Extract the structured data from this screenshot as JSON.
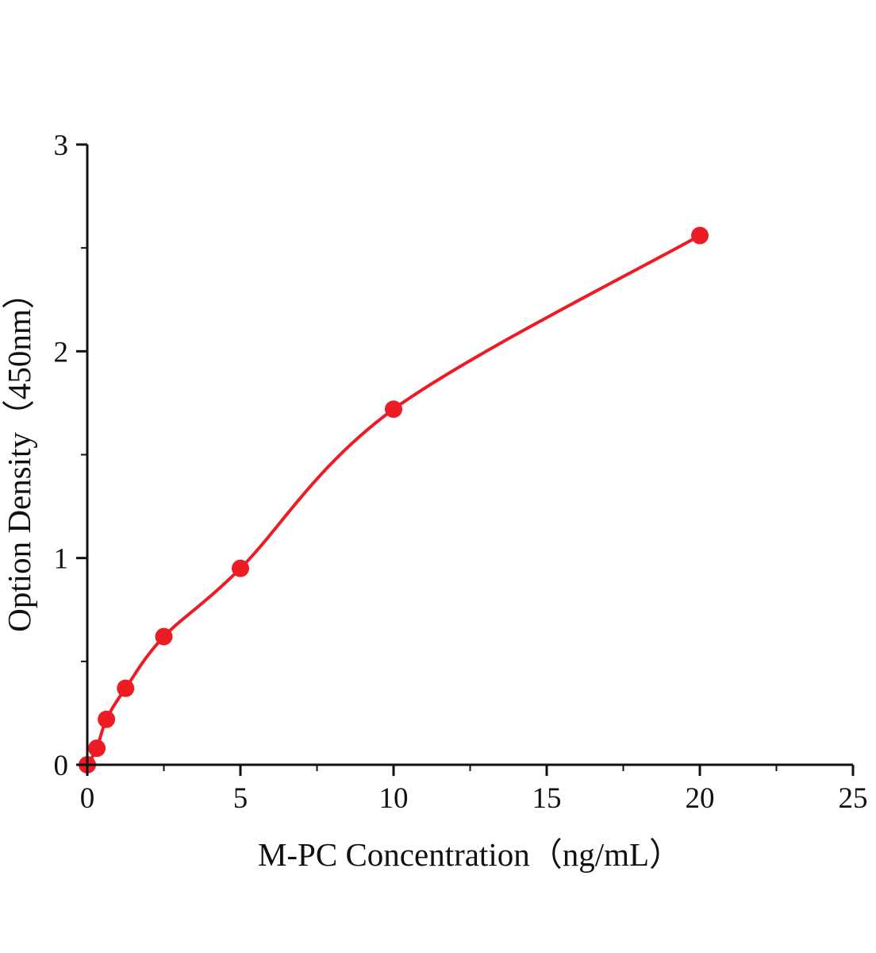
{
  "chart_data": {
    "type": "scatter",
    "title": "",
    "xlabel": "M-PC Concentration（ng/mL）",
    "ylabel": "Option Density（450nm）",
    "x": [
      0,
      0.3125,
      0.625,
      1.25,
      2.5,
      5,
      10,
      20
    ],
    "y": [
      0,
      0.08,
      0.22,
      0.37,
      0.62,
      0.95,
      1.72,
      2.56
    ],
    "xlim": [
      0,
      25
    ],
    "ylim": [
      0,
      3
    ],
    "x_ticks": [
      0,
      5,
      10,
      15,
      20,
      25
    ],
    "y_ticks": [
      0,
      1,
      2,
      3
    ],
    "x_minor_step": 2.5,
    "y_minor_step": 0.5,
    "curve_style": "smooth-fit-line",
    "marker": "circle",
    "marker_color": "#ed1b23",
    "line_color": "#ed1b23",
    "axis_color": "#111111",
    "grid": false,
    "legend": null
  }
}
